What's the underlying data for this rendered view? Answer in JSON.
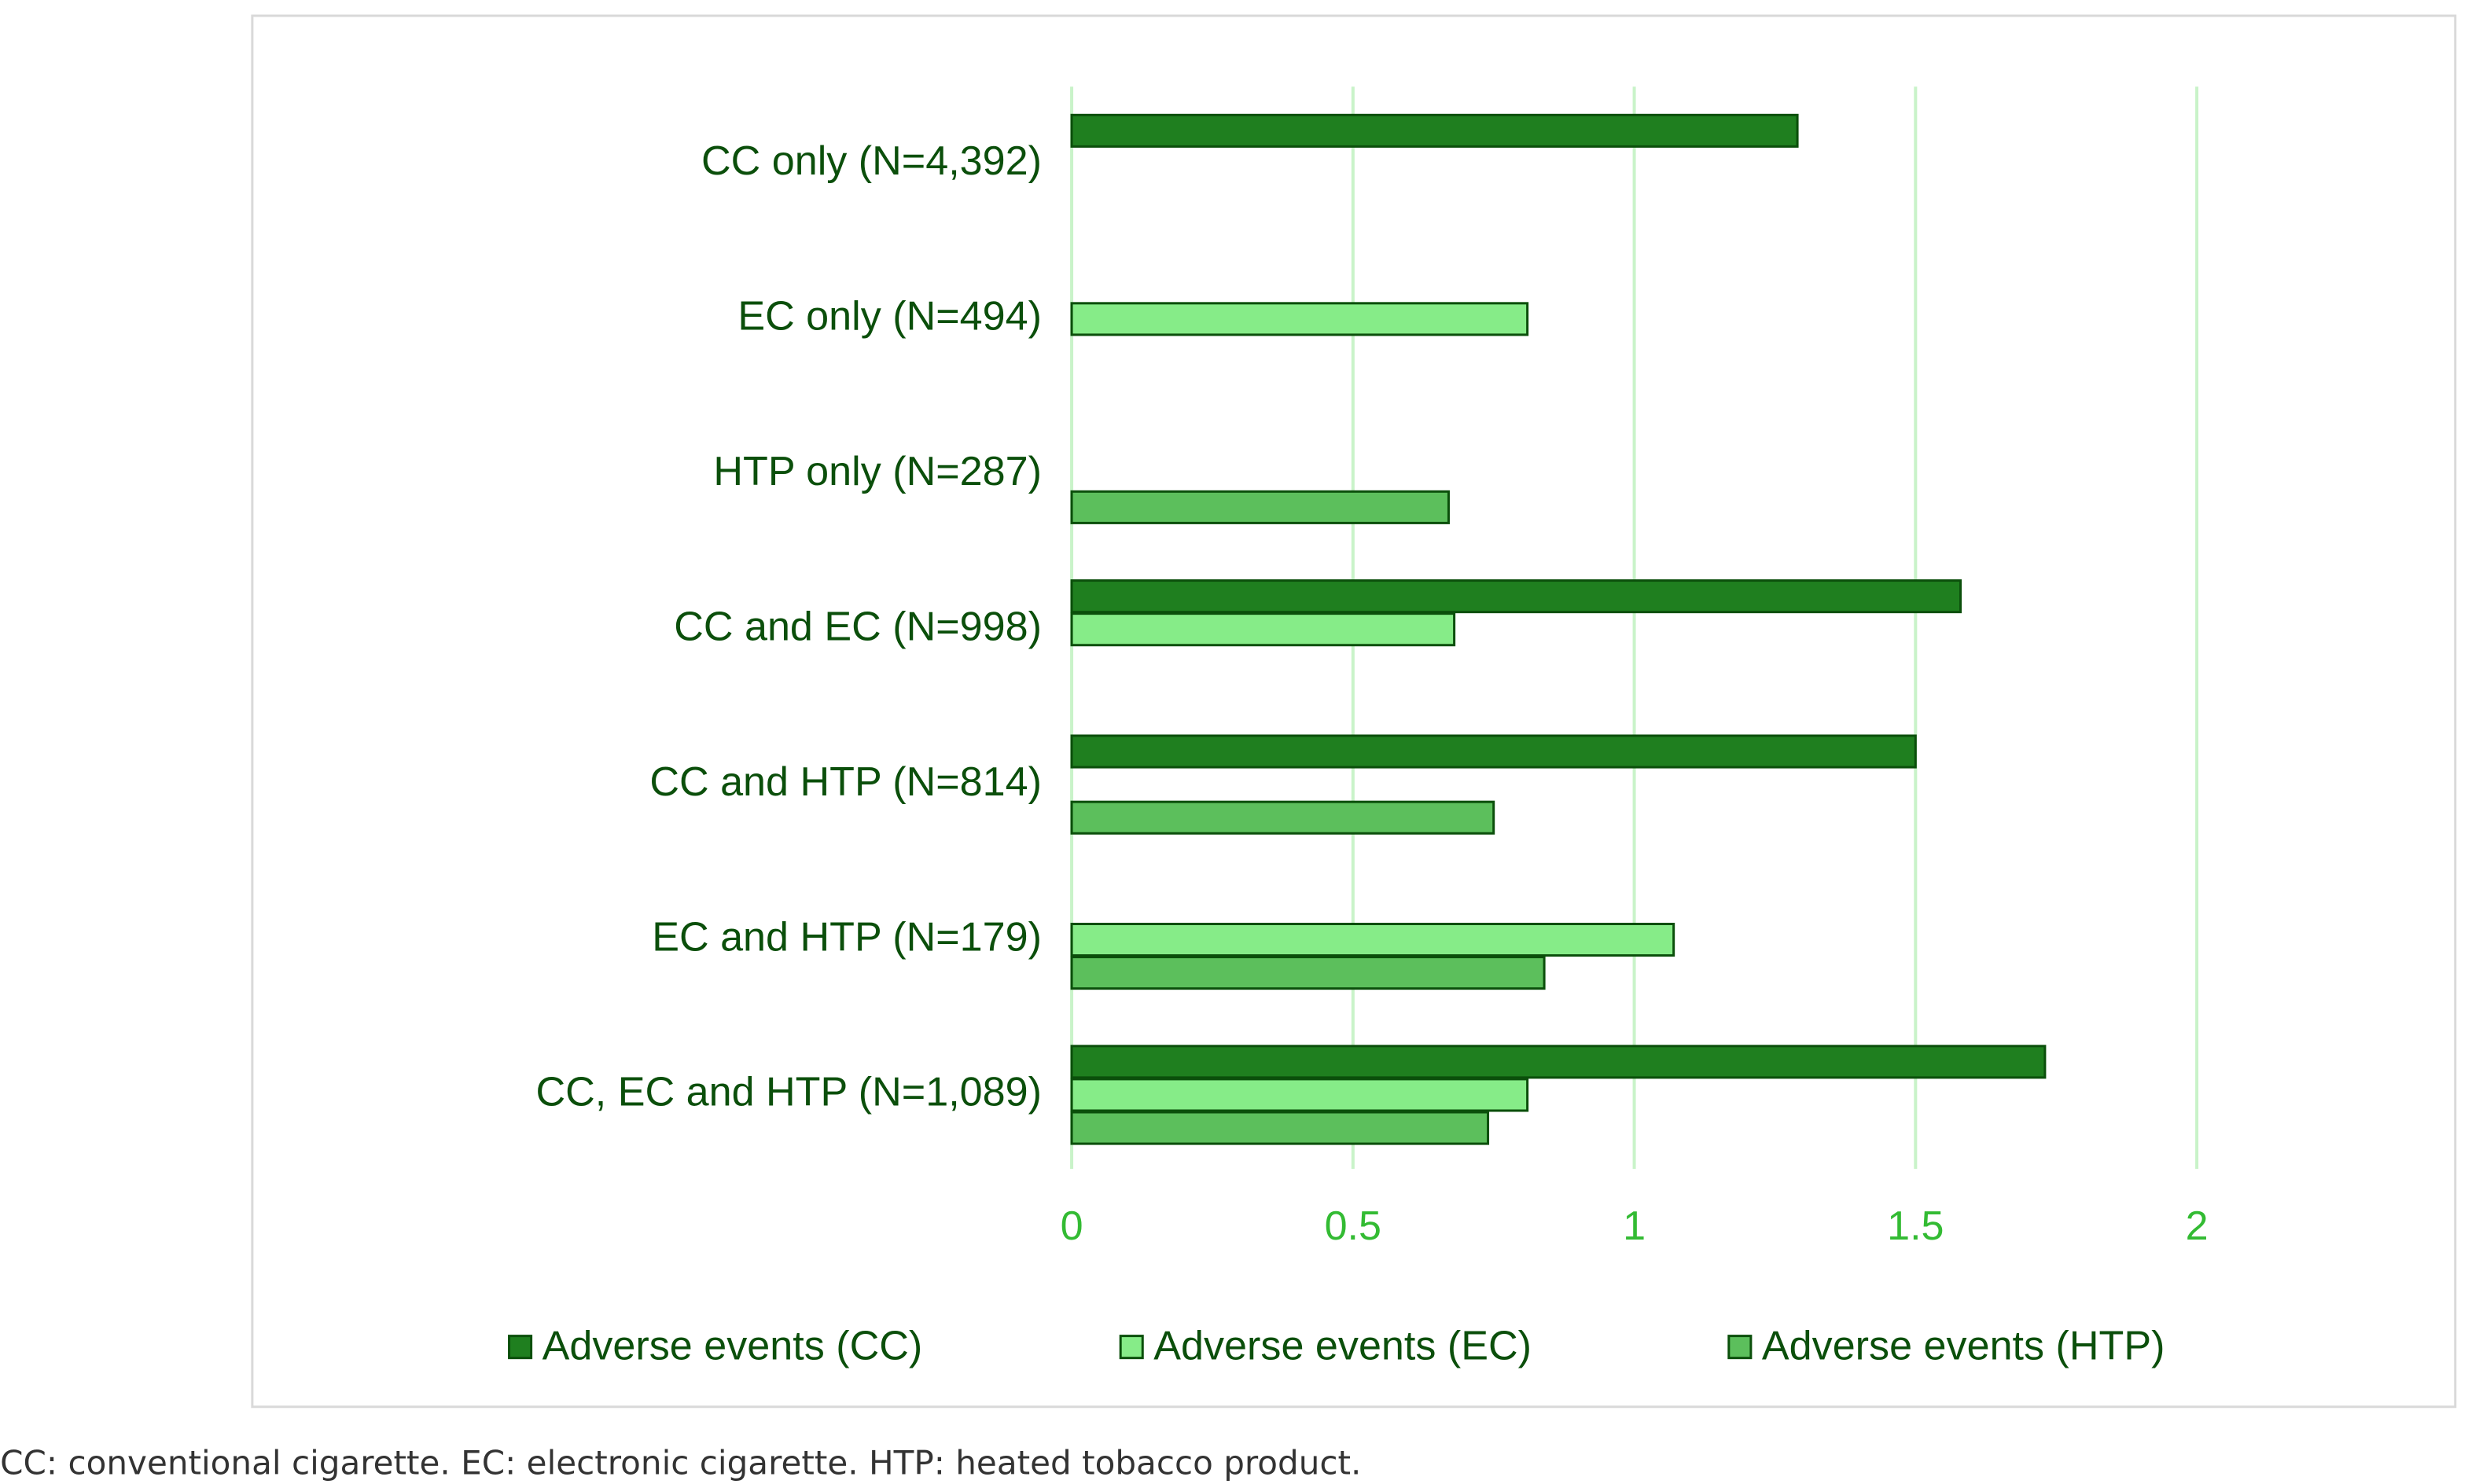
{
  "chart_data": {
    "type": "barh",
    "categories": [
      "CC only (N=4,392)",
      "EC only (N=494)",
      "HTP only (N=287)",
      "CC and EC (N=998)",
      "CC and HTP (N=814)",
      "EC and HTP (N=179)",
      "CC, EC and HTP (N=1,089)"
    ],
    "series": [
      {
        "name": "Adverse events (CC)",
        "color": "#1f7f1f",
        "values": [
          1.29,
          null,
          null,
          1.58,
          1.5,
          null,
          1.73
        ]
      },
      {
        "name": "Adverse events (EC)",
        "color": "#86ec88",
        "values": [
          null,
          0.81,
          null,
          0.68,
          null,
          1.07,
          0.81
        ]
      },
      {
        "name": "Adverse events (HTP)",
        "color": "#5cbf5c",
        "values": [
          null,
          null,
          0.67,
          null,
          0.75,
          0.84,
          0.74
        ]
      }
    ],
    "xlim": [
      0,
      2
    ],
    "xticks": [
      0,
      0.5,
      1,
      1.5,
      2
    ],
    "grid": true,
    "legend": "bottom",
    "note": "CC: conventional cigarette. EC: electronic cigarette. HTP: heated tobacco product."
  }
}
